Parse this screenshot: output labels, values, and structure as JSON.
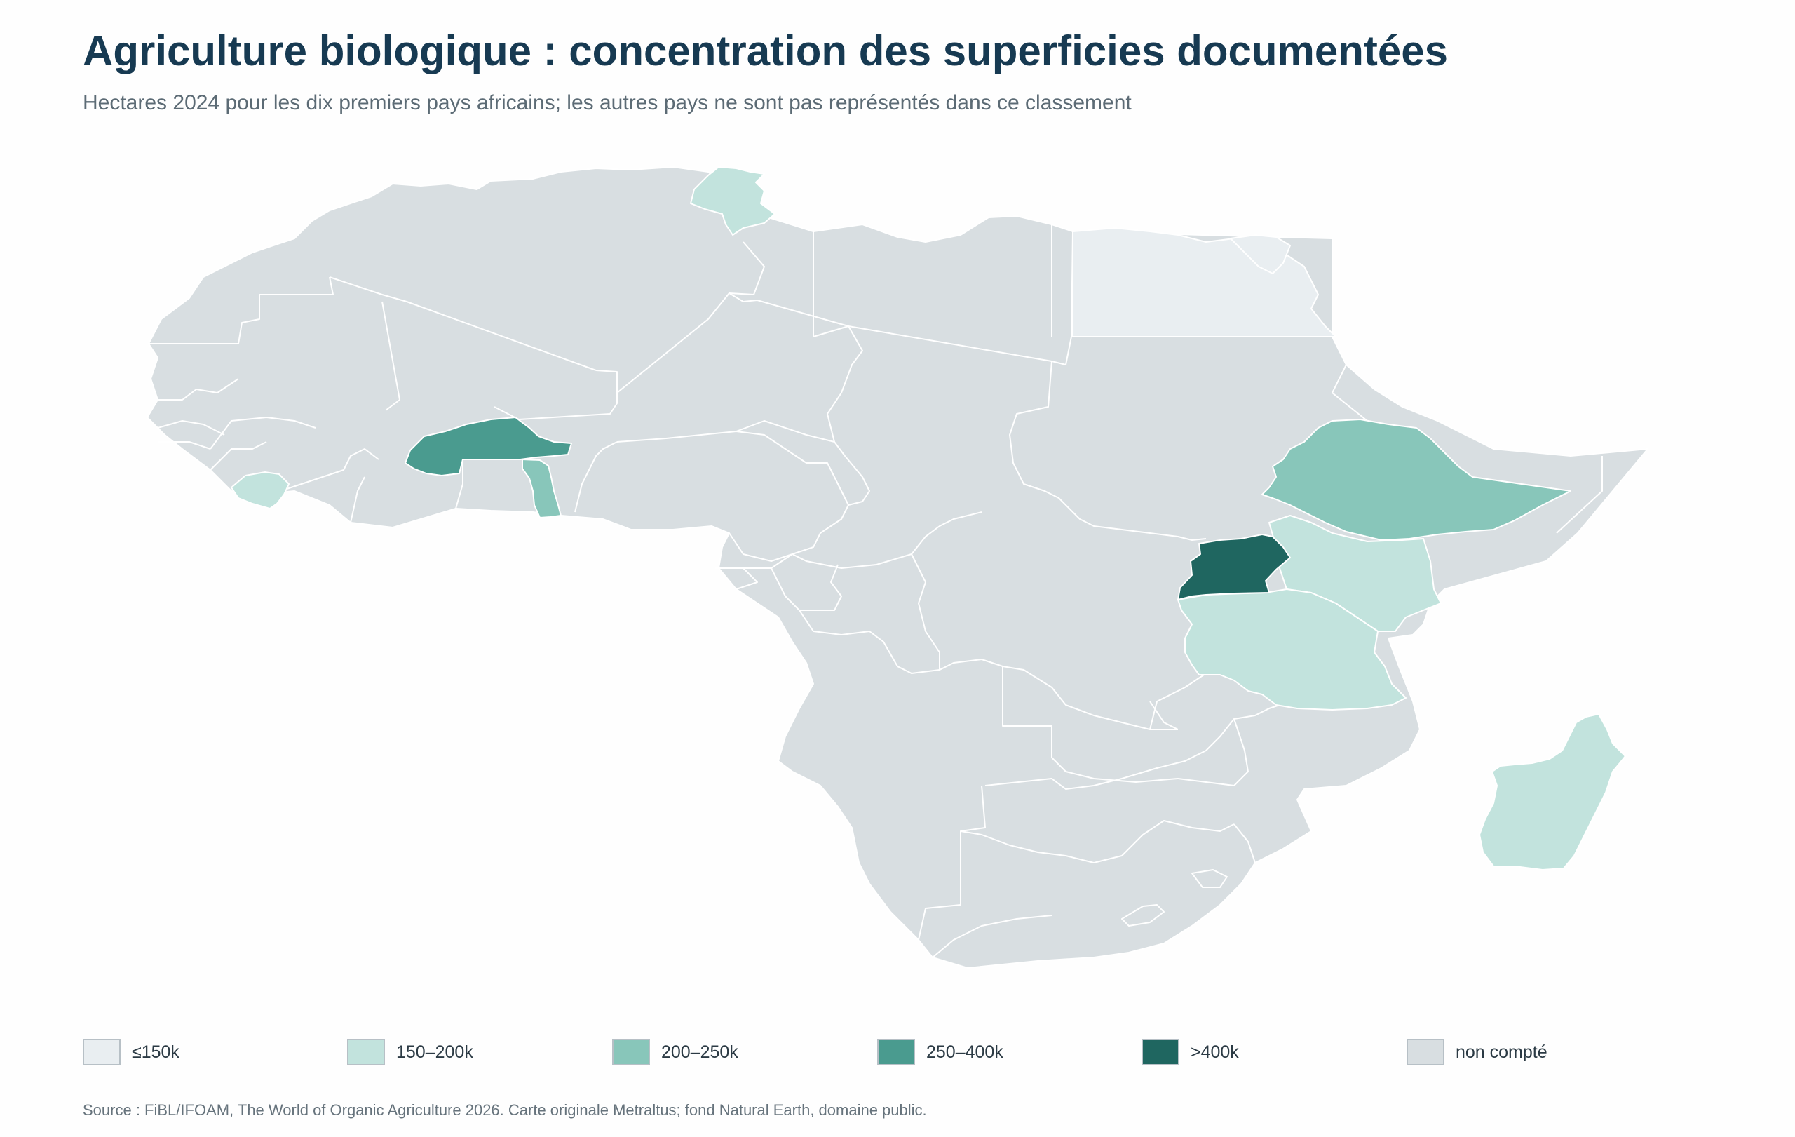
{
  "title": "Agriculture biologique : concentration des superficies documentées",
  "subtitle": "Hectares 2024 pour les dix premiers pays africains; les autres pays ne sont pas représentés dans ce classement",
  "legend": [
    {
      "label": "≤150k",
      "color": "#e9eef1"
    },
    {
      "label": "150–200k",
      "color": "#c2e3dd"
    },
    {
      "label": "200–250k",
      "color": "#88c6ba"
    },
    {
      "label": "250–400k",
      "color": "#4a9b8f"
    },
    {
      "label": ">400k",
      "color": "#1f6660"
    },
    {
      "label": "non compté",
      "color": "#d8dee1"
    }
  ],
  "map": {
    "region": "Africa",
    "other_color": "#d8dee1",
    "highlighted": [
      {
        "country": "Égypte",
        "class": "≤150k"
      },
      {
        "country": "Tunisie",
        "class": "150–200k"
      },
      {
        "country": "Sierra Leone",
        "class": "150–200k"
      },
      {
        "country": "Kenya",
        "class": "150–200k"
      },
      {
        "country": "Tanzanie",
        "class": "150–200k"
      },
      {
        "country": "Madagascar",
        "class": "150–200k"
      },
      {
        "country": "Éthiopie",
        "class": "200–250k"
      },
      {
        "country": "Togo",
        "class": "200–250k"
      },
      {
        "country": "Burkina Faso",
        "class": "250–400k"
      },
      {
        "country": "Ouganda",
        "class": ">400k"
      }
    ]
  },
  "source": "Source : FiBL/IFOAM, The World of Organic Agriculture 2026. Carte originale Metraltus; fond Natural Earth, domaine public."
}
